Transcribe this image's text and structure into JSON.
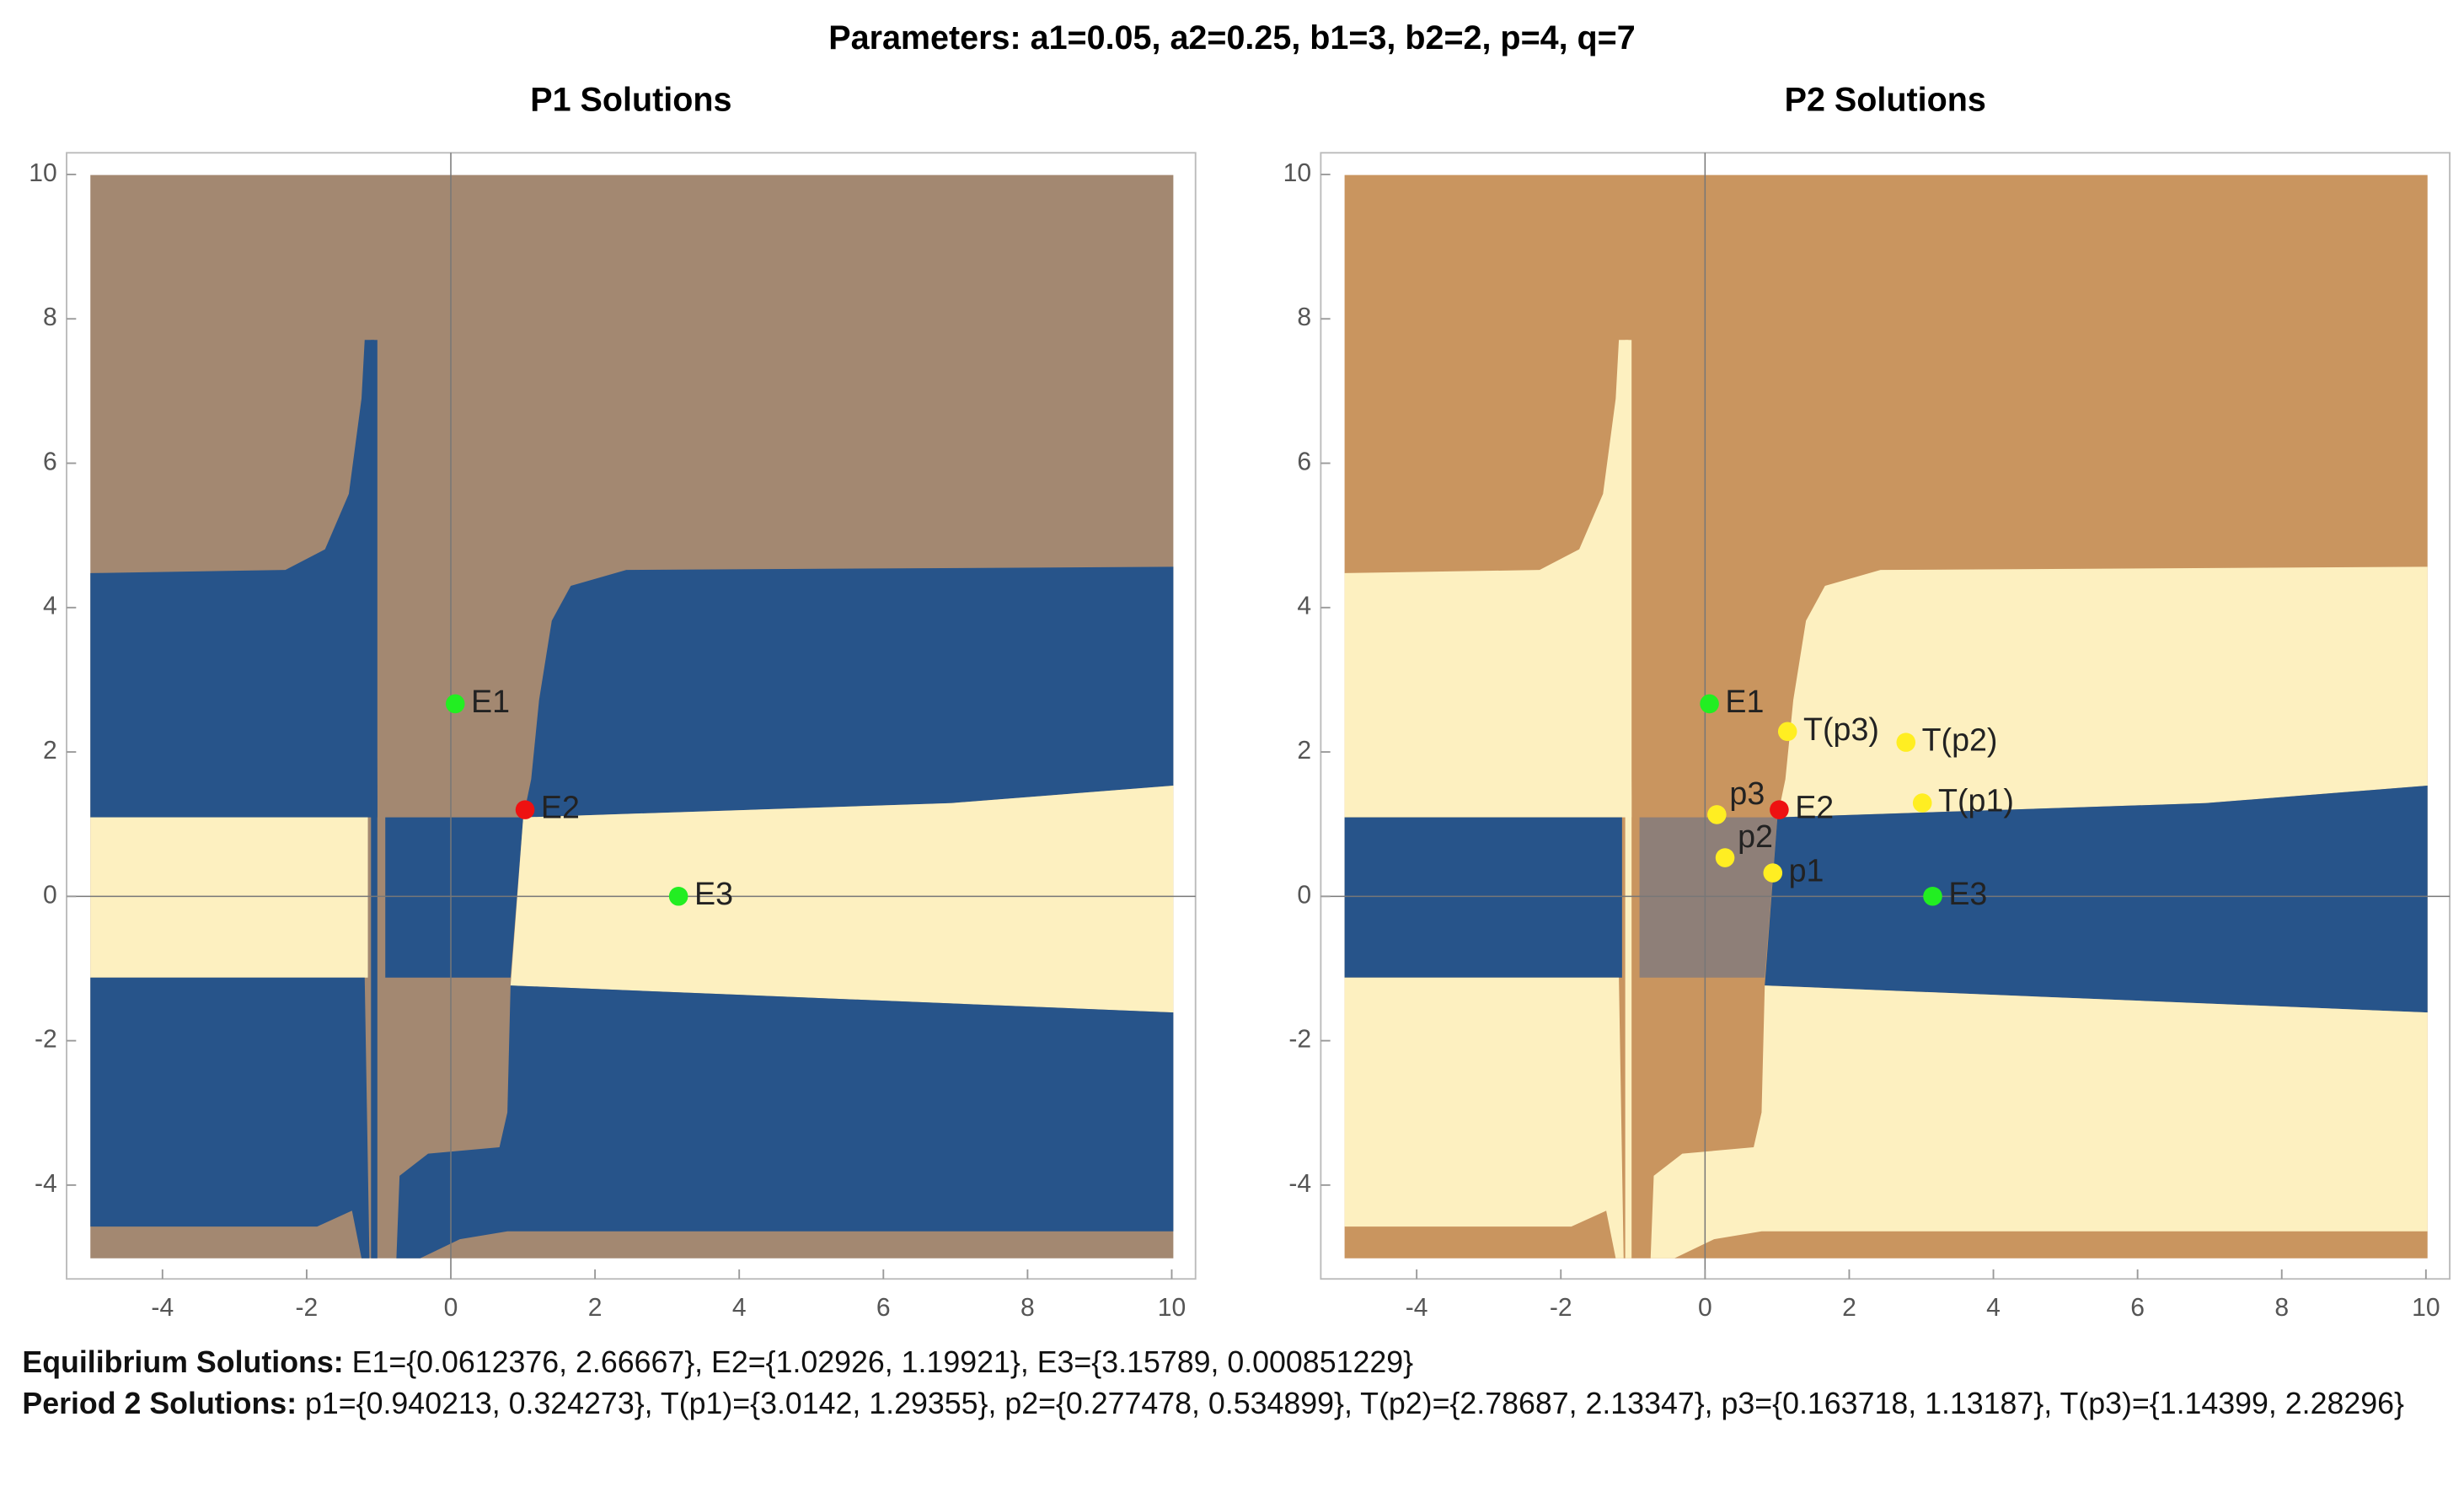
{
  "title": "Parameters: a1=0.05, a2=0.25, b1=3, b2=2, p=4, q=7",
  "chart_data": [
    {
      "type": "scatter",
      "title": "P1 Solutions",
      "xlim": [
        -5.33,
        10.33
      ],
      "ylim": [
        -5.3,
        10.3
      ],
      "xticks": [
        -4,
        -2,
        0,
        2,
        4,
        6,
        8,
        10
      ],
      "yticks": [
        -4,
        -2,
        0,
        2,
        4,
        6,
        8,
        10
      ],
      "points": [
        {
          "label": "E1",
          "x": 0.0612376,
          "y": 2.66667,
          "color": "#22ee22"
        },
        {
          "label": "E2",
          "x": 1.02926,
          "y": 1.19921,
          "color": "#ee1111"
        },
        {
          "label": "E3",
          "x": 3.15789,
          "y": 0.000851229,
          "color": "#22ee22"
        }
      ]
    },
    {
      "type": "scatter",
      "title": "P2 Solutions",
      "xlim": [
        -5.33,
        10.33
      ],
      "ylim": [
        -5.3,
        10.3
      ],
      "xticks": [
        -4,
        -2,
        0,
        2,
        4,
        6,
        8,
        10
      ],
      "yticks": [
        -4,
        -2,
        0,
        2,
        4,
        6,
        8,
        10
      ],
      "points": [
        {
          "label": "E1",
          "x": 0.0612376,
          "y": 2.66667,
          "color": "#22ee22"
        },
        {
          "label": "E2",
          "x": 1.02926,
          "y": 1.19921,
          "color": "#ee1111"
        },
        {
          "label": "E3",
          "x": 3.15789,
          "y": 0.000851229,
          "color": "#22ee22"
        },
        {
          "label": "p1",
          "x": 0.940213,
          "y": 0.324273,
          "color": "#ffee22"
        },
        {
          "label": "T(p1)",
          "x": 3.0142,
          "y": 1.29355,
          "color": "#ffee22"
        },
        {
          "label": "p2",
          "x": 0.277478,
          "y": 0.534899,
          "color": "#ffee22"
        },
        {
          "label": "T(p2)",
          "x": 2.78687,
          "y": 2.13347,
          "color": "#ffee22"
        },
        {
          "label": "p3",
          "x": 0.163718,
          "y": 1.13187,
          "color": "#ffee22"
        },
        {
          "label": "T(p3)",
          "x": 1.14399,
          "y": 2.28296,
          "color": "#ffee22"
        }
      ]
    }
  ],
  "notes": {
    "equilibrium": {
      "label": "Equilibrium Solutions:",
      "text": "E1={0.0612376, 2.66667}, E2={1.02926, 1.19921}, E3={3.15789, 0.000851229}"
    },
    "period": {
      "label": "Period 2 Solutions:",
      "text": "p1={0.940213, 0.324273}, T(p1)={3.0142, 1.29355}, p2={0.277478,  0.534899}, T(p2)={2.78687, 2.13347}, p3={0.163718, 1.13187}, T(p3)={1.14399, 2.28296}"
    }
  }
}
